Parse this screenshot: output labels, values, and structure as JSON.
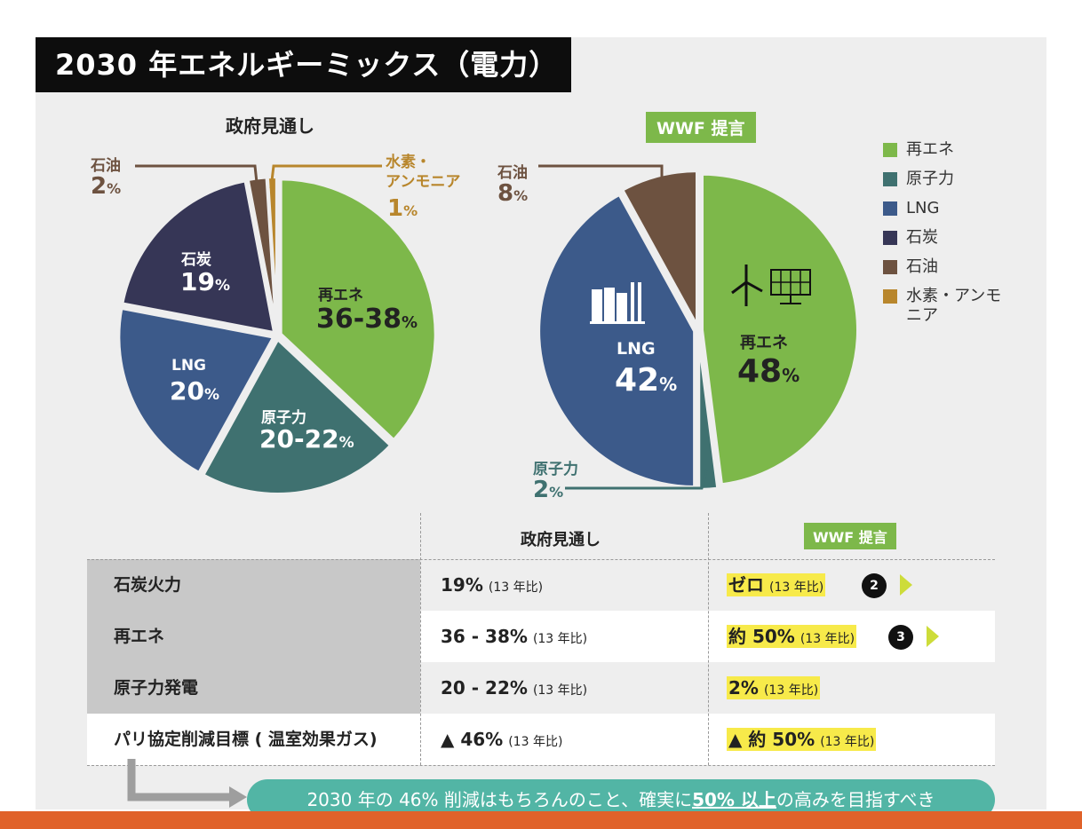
{
  "title": "2030 年エネルギーミックス（電力）",
  "chart_data": [
    {
      "type": "pie",
      "title": "政府見通し",
      "slices": [
        {
          "name": "再エネ",
          "value": 37,
          "label": "36-38%",
          "color": "#7db84a"
        },
        {
          "name": "原子力",
          "value": 21,
          "label": "20-22%",
          "color": "#3f7170"
        },
        {
          "name": "LNG",
          "value": 20,
          "label": "20%",
          "color": "#3c5a8a"
        },
        {
          "name": "石炭",
          "value": 19,
          "label": "19%",
          "color": "#363656"
        },
        {
          "name": "石油",
          "value": 2,
          "label": "2%",
          "color": "#6d5240"
        },
        {
          "name": "水素・アンモニア",
          "value": 1,
          "label": "1%",
          "color": "#b8862c"
        }
      ]
    },
    {
      "type": "pie",
      "title": "WWF 提言",
      "slices": [
        {
          "name": "再エネ",
          "value": 48,
          "label": "48%",
          "color": "#7db84a"
        },
        {
          "name": "原子力",
          "value": 2,
          "label": "2%",
          "color": "#3f7170"
        },
        {
          "name": "LNG",
          "value": 42,
          "label": "42%",
          "color": "#3c5a8a"
        },
        {
          "name": "石油",
          "value": 8,
          "label": "8%",
          "color": "#6d5240"
        }
      ]
    }
  ],
  "pie1": {
    "heading": "政府見通し",
    "renewable": {
      "name": "再エネ",
      "value": "36-38",
      "unit": "%"
    },
    "nuclear": {
      "name": "原子力",
      "value": "20-22",
      "unit": "%"
    },
    "lng": {
      "name": "LNG",
      "value": "20",
      "unit": "%"
    },
    "coal": {
      "name": "石炭",
      "value": "19",
      "unit": "%"
    },
    "oil": {
      "name": "石油",
      "value": "2",
      "unit": "%"
    },
    "hydrogen": {
      "name1": "水素・",
      "name2": "アンモニア",
      "value": "1",
      "unit": "%"
    }
  },
  "pie2": {
    "heading": "WWF 提言",
    "renewable": {
      "name": "再エネ",
      "value": "48",
      "unit": "%"
    },
    "lng": {
      "name": "LNG",
      "value": "42",
      "unit": "%"
    },
    "oil": {
      "name": "石油",
      "value": "8",
      "unit": "%"
    },
    "nuclear": {
      "name": "原子力",
      "value": "2",
      "unit": "%"
    }
  },
  "legend": [
    {
      "label": "再エネ",
      "color": "#7db84a"
    },
    {
      "label": "原子力",
      "color": "#3f7170"
    },
    {
      "label": "LNG",
      "color": "#3c5a8a"
    },
    {
      "label": "石炭",
      "color": "#363656"
    },
    {
      "label": "石油",
      "color": "#6d5240"
    },
    {
      "label": "水素・アンモニア",
      "color": "#b8862c"
    }
  ],
  "table": {
    "col_gov": "政府見通し",
    "col_wwf": "WWF 提言",
    "suffix": "(13 年比)",
    "rows": [
      {
        "label": "石炭火力",
        "gov": "19%",
        "wwf": "ゼロ",
        "badge": "2"
      },
      {
        "label": "再エネ",
        "gov": "36 - 38%",
        "wwf": "約 50%",
        "badge": "3"
      },
      {
        "label": "原子力発電",
        "gov": "20 - 22%",
        "wwf": "2%",
        "badge": ""
      },
      {
        "label": "パリ協定削減目標 ( 温室効果ガス)",
        "gov": "▲ 46%",
        "wwf": "▲ 約 50%",
        "badge": ""
      }
    ]
  },
  "banner": {
    "pre": "2030 年の 46% 削減はもちろんのこと、確実に",
    "emph": "50% 以上",
    "post": "の高みを目指すべき"
  }
}
